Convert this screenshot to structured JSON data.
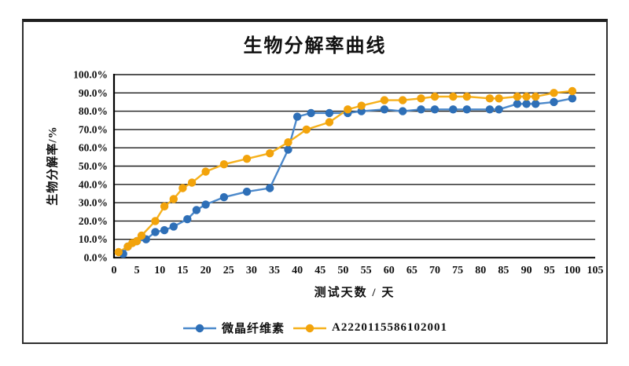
{
  "chart_data": {
    "type": "line",
    "title": "生物分解率曲线",
    "xlabel": "测试天数 / 天",
    "ylabel": "生物分解率/%",
    "xlim": [
      0,
      105
    ],
    "ylim": [
      0,
      100
    ],
    "x_ticks": [
      0,
      5,
      10,
      15,
      20,
      25,
      30,
      35,
      40,
      45,
      50,
      55,
      60,
      65,
      70,
      75,
      80,
      85,
      90,
      95,
      100,
      105
    ],
    "y_tick_labels_top_down": [
      "100.0%",
      "90.0%",
      "80.0%",
      "70.0%",
      "60.0%",
      "50.0%",
      "40.0%",
      "30.0%",
      "20.0%",
      "10.0%",
      "0.0%"
    ],
    "grid": "horizontal",
    "legend_position": "bottom",
    "series": [
      {
        "name": "微晶纤维素",
        "marker": "circle",
        "marker_color": "#2E6FB7",
        "line_color": "#4C89CB",
        "points": [
          [
            2,
            2
          ],
          [
            3,
            6
          ],
          [
            5,
            9
          ],
          [
            7,
            10
          ],
          [
            9,
            14
          ],
          [
            11,
            15
          ],
          [
            13,
            17
          ],
          [
            16,
            21
          ],
          [
            18,
            26
          ],
          [
            20,
            29
          ],
          [
            24,
            33
          ],
          [
            29,
            36
          ],
          [
            34,
            38
          ],
          [
            38,
            59
          ],
          [
            40,
            77
          ],
          [
            43,
            79
          ],
          [
            47,
            79
          ],
          [
            51,
            79
          ],
          [
            54,
            80
          ],
          [
            59,
            81
          ],
          [
            63,
            80
          ],
          [
            67,
            81
          ],
          [
            70,
            81
          ],
          [
            74,
            81
          ],
          [
            77,
            81
          ],
          [
            82,
            81
          ],
          [
            84,
            81
          ],
          [
            88,
            84
          ],
          [
            90,
            84
          ],
          [
            92,
            84
          ],
          [
            96,
            85
          ],
          [
            100,
            87
          ]
        ]
      },
      {
        "name": "A2220115586102001",
        "marker": "circle",
        "marker_color": "#F2A30B",
        "line_color": "#F6B11C",
        "points": [
          [
            1,
            3
          ],
          [
            3,
            6
          ],
          [
            4,
            8
          ],
          [
            5,
            9
          ],
          [
            6,
            12
          ],
          [
            9,
            20
          ],
          [
            11,
            28
          ],
          [
            13,
            32
          ],
          [
            15,
            38
          ],
          [
            17,
            41
          ],
          [
            20,
            47
          ],
          [
            24,
            51
          ],
          [
            29,
            54
          ],
          [
            34,
            57
          ],
          [
            38,
            63
          ],
          [
            42,
            70
          ],
          [
            47,
            74
          ],
          [
            51,
            81
          ],
          [
            54,
            83
          ],
          [
            59,
            86
          ],
          [
            63,
            86
          ],
          [
            67,
            87
          ],
          [
            70,
            88
          ],
          [
            74,
            88
          ],
          [
            77,
            88
          ],
          [
            82,
            87
          ],
          [
            84,
            87
          ],
          [
            88,
            88
          ],
          [
            90,
            88
          ],
          [
            92,
            88
          ],
          [
            96,
            90
          ],
          [
            100,
            91
          ]
        ]
      }
    ],
    "colors": {
      "gridline": "#1c1c1c",
      "axis": "#000000",
      "text": "#111111"
    }
  }
}
